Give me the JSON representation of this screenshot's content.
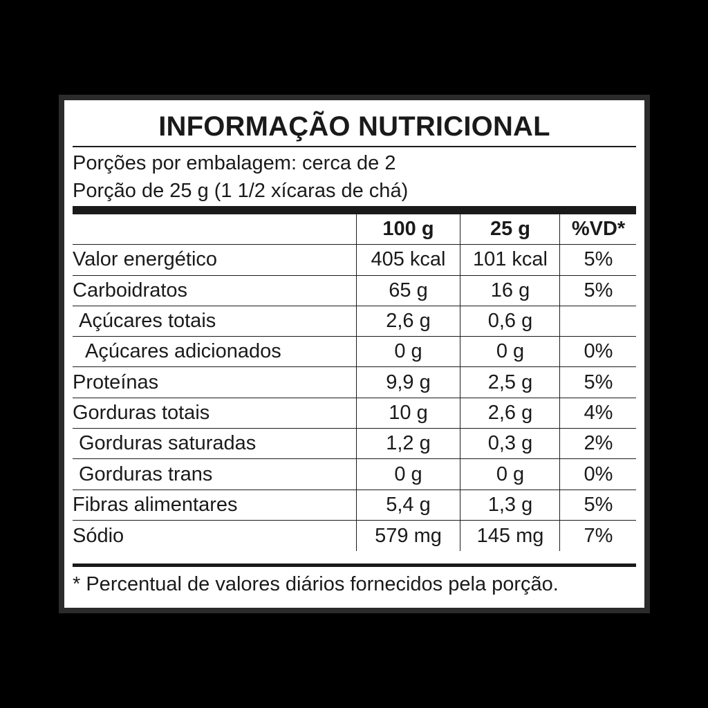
{
  "title": "INFORMAÇÃO NUTRICIONAL",
  "servings_per_package": "Porções por embalagem: cerca de 2",
  "serving_size": "Porção de 25 g (1 1/2 xícaras de chá)",
  "columns": {
    "nutrient": "",
    "per_100g": "100 g",
    "per_25g": "25 g",
    "vd": "%VD*"
  },
  "rows": [
    {
      "nutrient": "Valor energético",
      "per_100g": "405 kcal",
      "per_25g": "101 kcal",
      "vd": "5%"
    },
    {
      "nutrient": "Carboidratos",
      "per_100g": "65 g",
      "per_25g": "16 g",
      "vd": "5%"
    },
    {
      "nutrient": "Açúcares totais",
      "per_100g": "2,6 g",
      "per_25g": "0,6 g",
      "vd": ""
    },
    {
      "nutrient": "Açúcares adicionados",
      "per_100g": "0 g",
      "per_25g": "0 g",
      "vd": "0%"
    },
    {
      "nutrient": "Proteínas",
      "per_100g": "9,9 g",
      "per_25g": "2,5 g",
      "vd": "5%"
    },
    {
      "nutrient": "Gorduras totais",
      "per_100g": "10 g",
      "per_25g": "2,6 g",
      "vd": "4%"
    },
    {
      "nutrient": "Gorduras saturadas",
      "per_100g": "1,2 g",
      "per_25g": "0,3 g",
      "vd": "2%"
    },
    {
      "nutrient": "Gorduras trans",
      "per_100g": "0 g",
      "per_25g": "0 g",
      "vd": "0%"
    },
    {
      "nutrient": "Fibras alimentares",
      "per_100g": "5,4 g",
      "per_25g": "1,3 g",
      "vd": "5%"
    },
    {
      "nutrient": "Sódio",
      "per_100g": "579 mg",
      "per_25g": "145 mg",
      "vd": "7%"
    }
  ],
  "footnote": "* Percentual de valores diários fornecidos pela porção."
}
